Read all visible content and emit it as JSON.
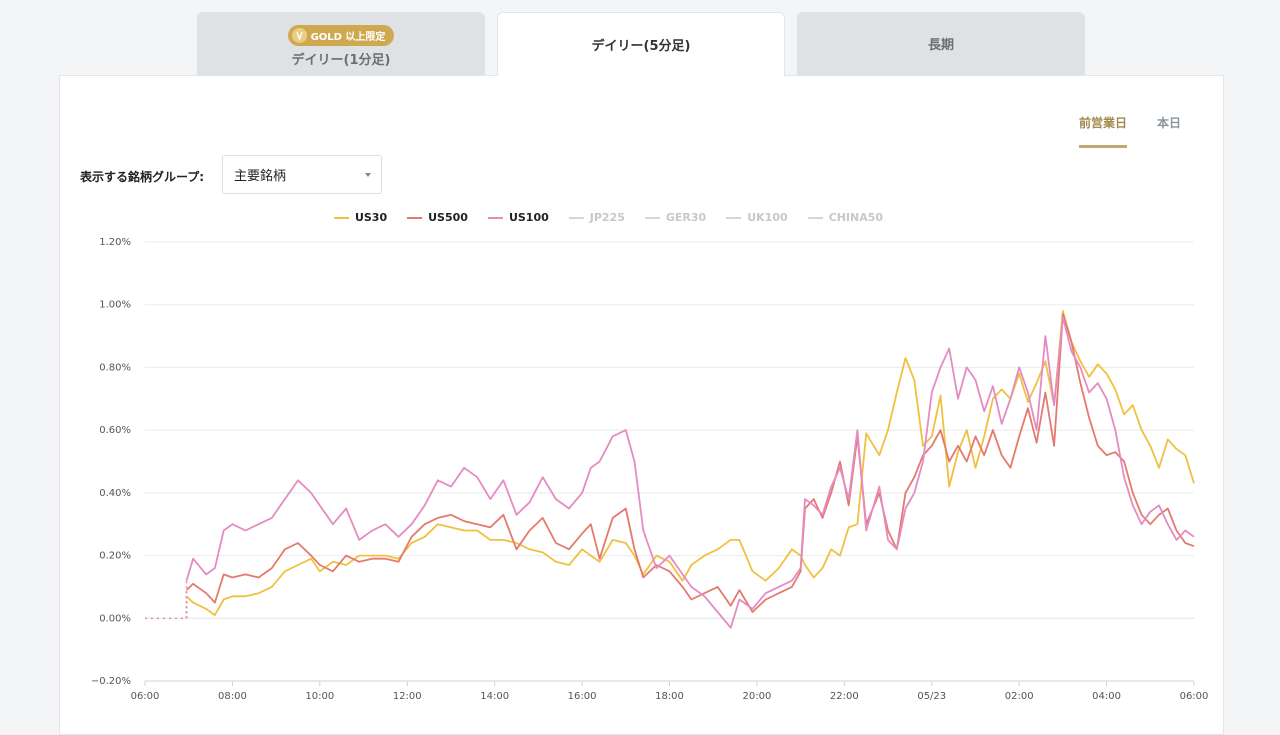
{
  "tabs": [
    {
      "label": "デイリー(1分足)",
      "badge": "GOLD 以上限定",
      "active": false
    },
    {
      "label": "デイリー(5分足)",
      "active": true
    },
    {
      "label": "長期",
      "active": false
    }
  ],
  "day_toggle": {
    "previous": "前営業日",
    "today": "本日",
    "selected": "previous"
  },
  "group": {
    "label": "表示する銘柄グループ:",
    "value": "主要銘柄"
  },
  "colors": {
    "US30": "#f0c040",
    "US500": "#e47a6e",
    "US100": "#e58bc4",
    "off": "#d3d6d9"
  },
  "chart_data": {
    "type": "line",
    "ylim": [
      -0.2,
      1.2
    ],
    "yticks": [
      -0.2,
      0.0,
      0.2,
      0.4,
      0.6,
      0.8,
      1.0,
      1.2
    ],
    "ytick_labels": [
      "−0.20%",
      "0.00%",
      "0.20%",
      "0.40%",
      "0.60%",
      "0.80%",
      "1.00%",
      "1.20%"
    ],
    "xlim": [
      0,
      24.0
    ],
    "xticks": [
      0,
      2,
      4,
      6,
      8,
      10,
      12,
      14,
      16,
      18,
      20,
      22,
      24
    ],
    "xtick_labels": [
      "06:00",
      "08:00",
      "10:00",
      "12:00",
      "14:00",
      "16:00",
      "18:00",
      "20:00",
      "22:00",
      "05/23",
      "02:00",
      "04:00",
      "06:00"
    ],
    "grid": "horizontal",
    "legend_position": "top-center",
    "flat_segment": {
      "x": [
        0,
        0.95
      ],
      "y": 0.0
    },
    "legend": [
      {
        "name": "US30",
        "visible": true
      },
      {
        "name": "US500",
        "visible": true
      },
      {
        "name": "US100",
        "visible": true
      },
      {
        "name": "JP225",
        "visible": false
      },
      {
        "name": "GER30",
        "visible": false
      },
      {
        "name": "UK100",
        "visible": false
      },
      {
        "name": "CHINA50",
        "visible": false
      }
    ],
    "series": [
      {
        "name": "US30",
        "x": [
          0.95,
          1.1,
          1.4,
          1.6,
          1.8,
          2.0,
          2.3,
          2.6,
          2.9,
          3.2,
          3.5,
          3.8,
          4.0,
          4.3,
          4.6,
          4.9,
          5.2,
          5.5,
          5.8,
          6.1,
          6.4,
          6.7,
          7.0,
          7.3,
          7.6,
          7.9,
          8.2,
          8.5,
          8.8,
          9.1,
          9.4,
          9.7,
          10.0,
          10.2,
          10.4,
          10.7,
          11.0,
          11.2,
          11.4,
          11.7,
          12.0,
          12.3,
          12.5,
          12.8,
          13.1,
          13.4,
          13.6,
          13.9,
          14.2,
          14.5,
          14.8,
          15.0,
          15.1,
          15.3,
          15.5,
          15.7,
          15.9,
          16.1,
          16.3,
          16.5,
          16.8,
          17.0,
          17.2,
          17.4,
          17.6,
          17.8,
          18.0,
          18.2,
          18.4,
          18.6,
          18.8,
          19.0,
          19.2,
          19.4,
          19.6,
          19.8,
          20.0,
          20.2,
          20.4,
          20.6,
          20.8,
          21.0,
          21.2,
          21.4,
          21.6,
          21.8,
          22.0,
          22.2,
          22.4,
          22.6,
          22.8,
          23.0,
          23.2,
          23.4,
          23.6,
          23.8,
          24.0
        ],
        "values": [
          0.07,
          0.05,
          0.03,
          0.01,
          0.06,
          0.07,
          0.07,
          0.08,
          0.1,
          0.15,
          0.17,
          0.19,
          0.15,
          0.18,
          0.17,
          0.2,
          0.2,
          0.2,
          0.19,
          0.24,
          0.26,
          0.3,
          0.29,
          0.28,
          0.28,
          0.25,
          0.25,
          0.24,
          0.22,
          0.21,
          0.18,
          0.17,
          0.22,
          0.2,
          0.18,
          0.25,
          0.24,
          0.2,
          0.14,
          0.2,
          0.18,
          0.12,
          0.17,
          0.2,
          0.22,
          0.25,
          0.25,
          0.15,
          0.12,
          0.16,
          0.22,
          0.2,
          0.17,
          0.13,
          0.16,
          0.22,
          0.2,
          0.29,
          0.3,
          0.59,
          0.52,
          0.6,
          0.72,
          0.83,
          0.76,
          0.55,
          0.58,
          0.71,
          0.42,
          0.53,
          0.6,
          0.48,
          0.58,
          0.7,
          0.73,
          0.7,
          0.78,
          0.69,
          0.75,
          0.82,
          0.68,
          0.98,
          0.88,
          0.82,
          0.77,
          0.81,
          0.78,
          0.73,
          0.65,
          0.68,
          0.6,
          0.55,
          0.48,
          0.57,
          0.54,
          0.52,
          0.43
        ]
      },
      {
        "name": "US500",
        "x": [
          0.95,
          1.1,
          1.4,
          1.6,
          1.8,
          2.0,
          2.3,
          2.6,
          2.9,
          3.2,
          3.5,
          3.8,
          4.0,
          4.3,
          4.6,
          4.9,
          5.2,
          5.5,
          5.8,
          6.1,
          6.4,
          6.7,
          7.0,
          7.3,
          7.6,
          7.9,
          8.2,
          8.5,
          8.8,
          9.1,
          9.4,
          9.7,
          10.0,
          10.2,
          10.4,
          10.7,
          11.0,
          11.2,
          11.4,
          11.7,
          12.0,
          12.3,
          12.5,
          12.8,
          13.1,
          13.4,
          13.6,
          13.9,
          14.2,
          14.5,
          14.8,
          15.0,
          15.1,
          15.3,
          15.5,
          15.7,
          15.9,
          16.1,
          16.3,
          16.5,
          16.8,
          17.0,
          17.2,
          17.4,
          17.6,
          17.8,
          18.0,
          18.2,
          18.4,
          18.6,
          18.8,
          19.0,
          19.2,
          19.4,
          19.6,
          19.8,
          20.0,
          20.2,
          20.4,
          20.6,
          20.8,
          21.0,
          21.2,
          21.4,
          21.6,
          21.8,
          22.0,
          22.2,
          22.4,
          22.6,
          22.8,
          23.0,
          23.2,
          23.4,
          23.6,
          23.8,
          24.0
        ],
        "values": [
          0.09,
          0.11,
          0.08,
          0.05,
          0.14,
          0.13,
          0.14,
          0.13,
          0.16,
          0.22,
          0.24,
          0.2,
          0.17,
          0.15,
          0.2,
          0.18,
          0.19,
          0.19,
          0.18,
          0.26,
          0.3,
          0.32,
          0.33,
          0.31,
          0.3,
          0.29,
          0.33,
          0.22,
          0.28,
          0.32,
          0.24,
          0.22,
          0.27,
          0.3,
          0.19,
          0.32,
          0.35,
          0.22,
          0.13,
          0.17,
          0.15,
          0.1,
          0.06,
          0.08,
          0.1,
          0.04,
          0.09,
          0.02,
          0.06,
          0.08,
          0.1,
          0.15,
          0.35,
          0.38,
          0.32,
          0.4,
          0.5,
          0.36,
          0.58,
          0.3,
          0.4,
          0.28,
          0.22,
          0.4,
          0.45,
          0.52,
          0.55,
          0.6,
          0.5,
          0.55,
          0.5,
          0.58,
          0.52,
          0.6,
          0.52,
          0.48,
          0.58,
          0.67,
          0.56,
          0.72,
          0.55,
          0.97,
          0.88,
          0.75,
          0.64,
          0.55,
          0.52,
          0.53,
          0.5,
          0.4,
          0.33,
          0.3,
          0.33,
          0.35,
          0.28,
          0.24,
          0.23
        ]
      },
      {
        "name": "US100",
        "x": [
          0.95,
          1.1,
          1.4,
          1.6,
          1.8,
          2.0,
          2.3,
          2.6,
          2.9,
          3.2,
          3.5,
          3.8,
          4.0,
          4.3,
          4.6,
          4.9,
          5.2,
          5.5,
          5.8,
          6.1,
          6.4,
          6.7,
          7.0,
          7.3,
          7.6,
          7.9,
          8.2,
          8.5,
          8.8,
          9.1,
          9.4,
          9.7,
          10.0,
          10.2,
          10.4,
          10.7,
          11.0,
          11.2,
          11.4,
          11.7,
          12.0,
          12.3,
          12.5,
          12.8,
          13.1,
          13.4,
          13.6,
          13.9,
          14.2,
          14.5,
          14.8,
          15.0,
          15.1,
          15.3,
          15.5,
          15.7,
          15.9,
          16.1,
          16.3,
          16.5,
          16.8,
          17.0,
          17.2,
          17.4,
          17.6,
          17.8,
          18.0,
          18.2,
          18.4,
          18.6,
          18.8,
          19.0,
          19.2,
          19.4,
          19.6,
          19.8,
          20.0,
          20.2,
          20.4,
          20.6,
          20.8,
          21.0,
          21.2,
          21.4,
          21.6,
          21.8,
          22.0,
          22.2,
          22.4,
          22.6,
          22.8,
          23.0,
          23.2,
          23.4,
          23.6,
          23.8,
          24.0
        ],
        "values": [
          0.12,
          0.19,
          0.14,
          0.16,
          0.28,
          0.3,
          0.28,
          0.3,
          0.32,
          0.38,
          0.44,
          0.4,
          0.36,
          0.3,
          0.35,
          0.25,
          0.28,
          0.3,
          0.26,
          0.3,
          0.36,
          0.44,
          0.42,
          0.48,
          0.45,
          0.38,
          0.44,
          0.33,
          0.37,
          0.45,
          0.38,
          0.35,
          0.4,
          0.48,
          0.5,
          0.58,
          0.6,
          0.5,
          0.28,
          0.16,
          0.2,
          0.14,
          0.1,
          0.07,
          0.02,
          -0.03,
          0.06,
          0.03,
          0.08,
          0.1,
          0.12,
          0.16,
          0.38,
          0.36,
          0.33,
          0.42,
          0.48,
          0.38,
          0.6,
          0.28,
          0.42,
          0.25,
          0.22,
          0.35,
          0.4,
          0.5,
          0.72,
          0.8,
          0.86,
          0.7,
          0.8,
          0.76,
          0.66,
          0.74,
          0.62,
          0.7,
          0.8,
          0.72,
          0.6,
          0.9,
          0.68,
          0.96,
          0.85,
          0.8,
          0.72,
          0.75,
          0.7,
          0.6,
          0.45,
          0.36,
          0.3,
          0.34,
          0.36,
          0.3,
          0.25,
          0.28,
          0.26
        ]
      }
    ]
  }
}
